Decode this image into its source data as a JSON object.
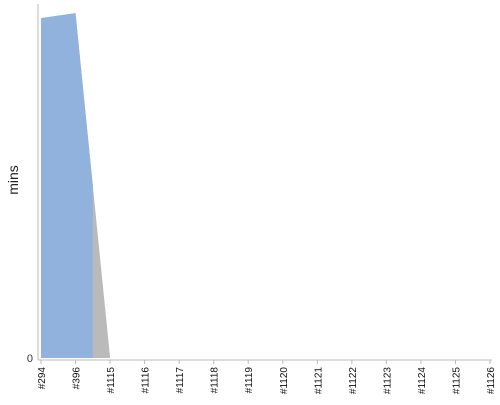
{
  "chart_data": {
    "type": "area",
    "stacked": true,
    "ylabel": "mins",
    "categories": [
      "#294",
      "#396",
      "#1115",
      "#1116",
      "#1117",
      "#1118",
      "#1119",
      "#1120",
      "#1121",
      "#1122",
      "#1123",
      "#1124",
      "#1125",
      "#1126"
    ],
    "series": [
      {
        "color": "#92b2de",
        "values": [
          33.5,
          34.0,
          0,
          0,
          0,
          0,
          0,
          0,
          0,
          0,
          0,
          0,
          0,
          0
        ]
      },
      {
        "color": "#bababa",
        "values": [
          0,
          0,
          0,
          0,
          0,
          0,
          0,
          0,
          0,
          0,
          0,
          0,
          0,
          0
        ]
      }
    ],
    "yticks": [
      0
    ],
    "ylim": [
      0,
      34.5
    ],
    "grid": false,
    "legend": "none"
  }
}
